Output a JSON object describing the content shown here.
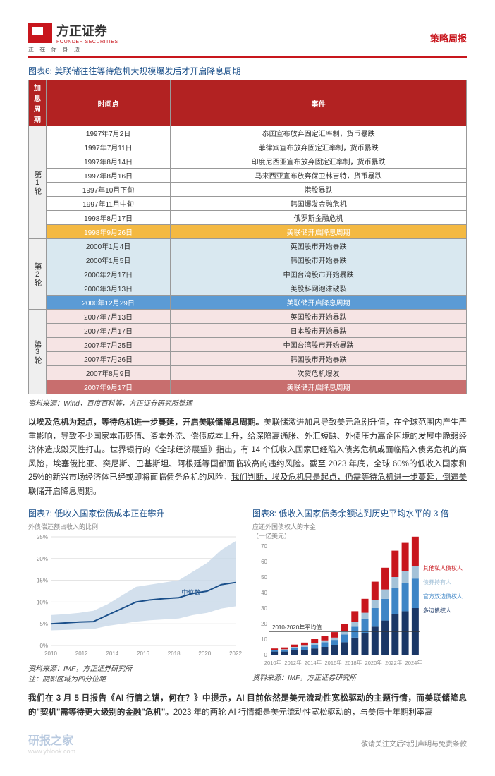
{
  "header": {
    "company_cn": "方正证券",
    "company_en": "FOUNDER SECURITIES",
    "tagline": "正 在 你 身 边",
    "doc_type": "策略周报"
  },
  "table6": {
    "title": "图表6: 美联储往往等待危机大规模爆发后才开启降息周期",
    "headers": [
      "加息周期",
      "时间点",
      "事件"
    ],
    "periods": [
      {
        "label": "第1轮",
        "rows": [
          {
            "date": "1997年7月2日",
            "event": "泰国宣布放弃固定汇率制，货币暴跌",
            "bg": "#ffffff"
          },
          {
            "date": "1997年7月11日",
            "event": "菲律宾宣布放弃固定汇率制，货币暴跌",
            "bg": "#ffffff"
          },
          {
            "date": "1997年8月14日",
            "event": "印度尼西亚宣布放弃固定汇率制，货币暴跌",
            "bg": "#ffffff"
          },
          {
            "date": "1997年8月16日",
            "event": "马来西亚宣布放弃保卫林吉特，货币暴跌",
            "bg": "#ffffff"
          },
          {
            "date": "1997年10月下旬",
            "event": "港股暴跌",
            "bg": "#ffffff"
          },
          {
            "date": "1997年11月中旬",
            "event": "韩国爆发金融危机",
            "bg": "#ffffff"
          },
          {
            "date": "1998年8月17日",
            "event": "俄罗斯金融危机",
            "bg": "#ffffff"
          },
          {
            "date": "1998年9月26日",
            "event": "美联储开启降息周期",
            "bg": "#f4b942",
            "fg": "#ffffff"
          }
        ]
      },
      {
        "label": "第2轮",
        "rows": [
          {
            "date": "2000年1月4日",
            "event": "英国股市开始暴跌",
            "bg": "#d9e8f0"
          },
          {
            "date": "2000年1月5日",
            "event": "韩国股市开始暴跌",
            "bg": "#d9e8f0"
          },
          {
            "date": "2000年2月17日",
            "event": "中国台湾股市开始暴跌",
            "bg": "#d9e8f0"
          },
          {
            "date": "2000年3月13日",
            "event": "美股科网泡沫破裂",
            "bg": "#d9e8f0"
          },
          {
            "date": "2000年12月29日",
            "event": "美联储开启降息周期",
            "bg": "#5b9bd5",
            "fg": "#ffffff"
          }
        ]
      },
      {
        "label": "第3轮",
        "rows": [
          {
            "date": "2007年7月13日",
            "event": "英国股市开始暴跌",
            "bg": "#f6e4e4"
          },
          {
            "date": "2007年7月17日",
            "event": "日本股市开始暴跌",
            "bg": "#f6e4e4"
          },
          {
            "date": "2007年7月25日",
            "event": "中国台湾股市开始暴跌",
            "bg": "#f6e4e4"
          },
          {
            "date": "2007年7月26日",
            "event": "韩国股市开始暴跌",
            "bg": "#f6e4e4"
          },
          {
            "date": "2007年8月9日",
            "event": "次贷危机爆发",
            "bg": "#f6e4e4"
          },
          {
            "date": "2007年9月17日",
            "event": "美联储开启降息周期",
            "bg": "#c86e6e",
            "fg": "#ffffff"
          }
        ]
      }
    ],
    "source": "资料来源：Wind，百度百科等，方正证券研究所整理"
  },
  "para1": "以埃及危机为起点，等待危机进一步蔓延，开启美联储降息周期。",
  "para1_body": "美联储激进加息导致美元急剧升值，在全球范围内产生严重影响，导致不少国家本币贬值、资本外流、偿债成本上升，给深陷高通胀、外汇短缺、外债压力高企困境的发展中脆弱经济体造成毁灭性打击。世界银行的《全球经济展望》指出，有 14 个低收入国家已经陷入债务危机或面临陷入债务危机的高风险，埃塞俄比亚、突尼斯、巴基斯坦、阿根廷等国都面临较高的违约风险。截至 2023 年底，全球 60%的低收入国家和 25%的新兴市场经济体已经或即将面临债务危机的风险。",
  "para1_u": "我们判断，埃及危机只是起点，仍需等待危机进一步蔓延，倒逼美联储开启降息周期。",
  "chart7": {
    "title": "图表7: 低收入国家偿债成本正在攀升",
    "subtitle": "外债偿还额占收入的比例",
    "type": "line",
    "years": [
      2010,
      2012,
      2014,
      2016,
      2018,
      2020,
      2022
    ],
    "median_label": "中位数",
    "median": [
      5.0,
      5.2,
      5.4,
      5.5,
      7.0,
      8.5,
      10.0,
      10.5,
      10.8,
      11.0,
      12.0,
      12.5,
      14.0,
      14.5
    ],
    "band_upper": [
      7.0,
      7.2,
      7.5,
      8.0,
      9.5,
      11.5,
      13.5,
      14.0,
      14.5,
      15.0,
      17.0,
      19.0,
      22.0,
      24.0
    ],
    "band_lower": [
      3.5,
      3.6,
      3.7,
      3.8,
      4.5,
      5.0,
      5.5,
      5.8,
      6.0,
      6.2,
      7.0,
      7.5,
      8.5,
      9.0
    ],
    "ylim": [
      0,
      25
    ],
    "ytick_step": 5,
    "line_color": "#1a4f8a",
    "band_color": "#c8d8e8",
    "bg": "#ffffff",
    "grid_color": "#e0e0e0",
    "source": "资料来源：IMF，方正证券研究所",
    "note": "注：阴影区域为四分位距"
  },
  "chart8": {
    "title": "图表8: 低收入国家债务余额达到历史平均水平的 3 倍",
    "subtitle": "应还外国债权人的本金",
    "unit": "（十亿美元）",
    "type": "stacked_bar",
    "years": [
      "2010年",
      "2012年",
      "2014年",
      "2016年",
      "2018年",
      "2020年",
      "2022年",
      "2024年"
    ],
    "series": [
      {
        "name": "多边债权人",
        "color": "#1a3766"
      },
      {
        "name": "官方双边债权人",
        "color": "#3d85c6"
      },
      {
        "name": "债券持有人",
        "color": "#a4c2d8"
      },
      {
        "name": "其他私人债权人",
        "color": "#c8161d"
      }
    ],
    "data_per_year": [
      [
        2,
        1,
        0,
        1
      ],
      [
        2,
        1.2,
        0.3,
        1.2
      ],
      [
        3,
        1.5,
        0.5,
        1.5
      ],
      [
        3,
        2,
        0.8,
        2
      ],
      [
        4,
        2.5,
        1,
        2.5
      ],
      [
        5,
        3,
        1.2,
        3
      ],
      [
        6,
        3.5,
        1.5,
        3.5
      ],
      [
        8,
        5,
        2,
        5
      ],
      [
        11,
        7,
        3,
        7
      ],
      [
        14,
        9,
        4,
        9
      ],
      [
        18,
        12,
        5,
        12
      ],
      [
        22,
        14,
        6,
        14
      ],
      [
        26,
        17,
        7,
        17
      ],
      [
        28,
        18,
        8,
        18
      ],
      [
        30,
        19,
        8,
        19
      ]
    ],
    "avg_line_label": "2010-2020年平均值",
    "avg_value": 15,
    "ylim": [
      0,
      70
    ],
    "ytick_step": 10,
    "bg": "#ffffff",
    "source": "资料来源：IMF，方正证券研究所"
  },
  "para2": "我们在 3 月 5 日报告《AI 行情之锚，何在？》中提示，AI 目前依然是美元流动性宽松驱动的主题行情，而美联储降息的\"契机\"需等待更大级别的金融\"危机\"。",
  "para2_body": "2023 年的两轮 AI 行情都是美元流动性宽松驱动的，与美债十年期利率高",
  "footer": {
    "watermark": "研报之家",
    "watermark_url": "www.yblook.com",
    "disclaimer": "敬请关注文后特别声明与免责条款"
  }
}
